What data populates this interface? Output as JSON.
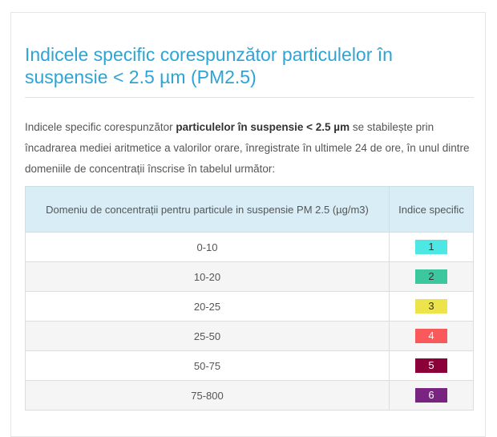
{
  "title": "Indicele specific corespunzător particulelor în suspensie < 2.5 µm (PM2.5)",
  "intro": {
    "part1": "Indicele specific corespunzător ",
    "bold": "particulelor în suspensie < 2.5 µm",
    "part2": " se stabilește prin încadrarea mediei aritmetice a valorilor orare, înregistrate în ultimele 24 de ore, în unul dintre domeniile de concentrații înscrise în tabelul următor:"
  },
  "table": {
    "headers": {
      "range": "Domeniu de concentrații pentru particule in suspensie PM 2.5 (µg/m3)",
      "index": "Indice specific"
    },
    "rows": [
      {
        "range": "0-10",
        "index": "1",
        "color": "#4ee8e4",
        "text_color": "#333333"
      },
      {
        "range": "10-20",
        "index": "2",
        "color": "#3cc79f",
        "text_color": "#333333"
      },
      {
        "range": "20-25",
        "index": "3",
        "color": "#ede34a",
        "text_color": "#333333"
      },
      {
        "range": "25-50",
        "index": "4",
        "color": "#f9595a",
        "text_color": "#ffffff"
      },
      {
        "range": "50-75",
        "index": "5",
        "color": "#8b0038",
        "text_color": "#ffffff"
      },
      {
        "range": "75-800",
        "index": "6",
        "color": "#7a2482",
        "text_color": "#ffffff"
      }
    ]
  }
}
